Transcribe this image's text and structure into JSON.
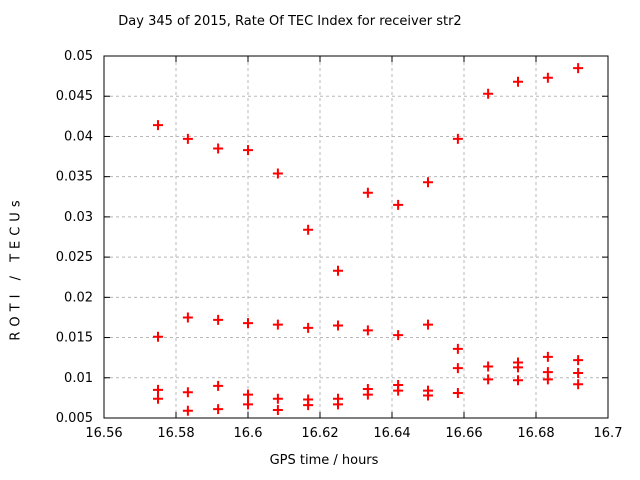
{
  "chart_data": {
    "type": "scatter",
    "title": "Day 345 of 2015, Rate Of TEC Index for receiver str2",
    "xlabel": "GPS time / hours",
    "ylabel": "ROTI / TECUs",
    "xlim": [
      16.56,
      16.7
    ],
    "ylim": [
      0.005,
      0.05
    ],
    "xticks": [
      16.56,
      16.58,
      16.6,
      16.62,
      16.64,
      16.66,
      16.68,
      16.7
    ],
    "xtick_labels": [
      "16.56",
      "16.58",
      "16.6",
      "16.62",
      "16.64",
      "16.66",
      "16.68",
      "16.7"
    ],
    "yticks": [
      0.005,
      0.01,
      0.015,
      0.02,
      0.025,
      0.03,
      0.035,
      0.04,
      0.045,
      0.05
    ],
    "ytick_labels": [
      "0.005",
      "0.01",
      "0.015",
      "0.02",
      "0.025",
      "0.03",
      "0.035",
      "0.04",
      "0.045",
      "0.05"
    ],
    "grid": true,
    "legend": "none",
    "marker": {
      "shape": "plus",
      "color": "#ff0000",
      "size": 11
    },
    "colors": {
      "background": "#ffffff",
      "border": "#000000",
      "gridline": "#b8b8b8",
      "text": "#000000"
    },
    "series": [
      {
        "name": "ROTI",
        "points": [
          [
            16.575,
            0.0414
          ],
          [
            16.5833,
            0.0397
          ],
          [
            16.5917,
            0.0385
          ],
          [
            16.6,
            0.0383
          ],
          [
            16.6083,
            0.0354
          ],
          [
            16.6167,
            0.0284
          ],
          [
            16.625,
            0.0233
          ],
          [
            16.6333,
            0.033
          ],
          [
            16.6417,
            0.0315
          ],
          [
            16.65,
            0.0343
          ],
          [
            16.6583,
            0.0397
          ],
          [
            16.6667,
            0.0453
          ],
          [
            16.675,
            0.0468
          ],
          [
            16.6833,
            0.0473
          ],
          [
            16.6917,
            0.0485
          ],
          [
            16.575,
            0.0151
          ],
          [
            16.5833,
            0.0175
          ],
          [
            16.5917,
            0.0172
          ],
          [
            16.6,
            0.0168
          ],
          [
            16.6083,
            0.0166
          ],
          [
            16.6167,
            0.0162
          ],
          [
            16.625,
            0.0165
          ],
          [
            16.6333,
            0.0159
          ],
          [
            16.6417,
            0.0153
          ],
          [
            16.65,
            0.0166
          ],
          [
            16.6583,
            0.0136
          ],
          [
            16.6583,
            0.0112
          ],
          [
            16.6583,
            0.0081
          ],
          [
            16.6667,
            0.0114
          ],
          [
            16.6667,
            0.0098
          ],
          [
            16.675,
            0.0119
          ],
          [
            16.675,
            0.0113
          ],
          [
            16.675,
            0.0097
          ],
          [
            16.6833,
            0.0126
          ],
          [
            16.6833,
            0.0107
          ],
          [
            16.6833,
            0.0098
          ],
          [
            16.6917,
            0.0122
          ],
          [
            16.6917,
            0.0106
          ],
          [
            16.6917,
            0.0092
          ],
          [
            16.575,
            0.0085
          ],
          [
            16.575,
            0.0074
          ],
          [
            16.5833,
            0.0082
          ],
          [
            16.5833,
            0.0059
          ],
          [
            16.5917,
            0.009
          ],
          [
            16.5917,
            0.0061
          ],
          [
            16.6,
            0.0079
          ],
          [
            16.6,
            0.0067
          ],
          [
            16.6083,
            0.0074
          ],
          [
            16.6083,
            0.006
          ],
          [
            16.6167,
            0.0073
          ],
          [
            16.6167,
            0.0066
          ],
          [
            16.625,
            0.0074
          ],
          [
            16.625,
            0.0067
          ],
          [
            16.6333,
            0.0086
          ],
          [
            16.6333,
            0.0079
          ],
          [
            16.6417,
            0.0091
          ],
          [
            16.6417,
            0.0084
          ],
          [
            16.65,
            0.0084
          ],
          [
            16.65,
            0.0078
          ]
        ]
      }
    ]
  }
}
